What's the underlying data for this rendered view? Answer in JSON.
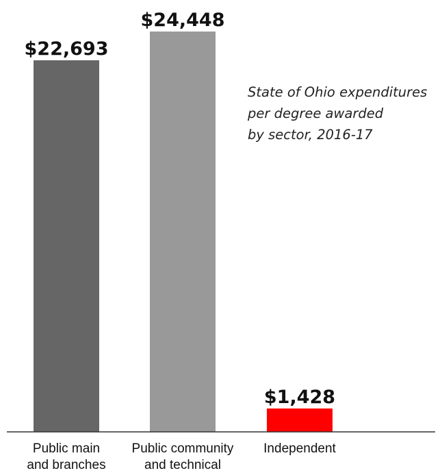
{
  "chart_data": {
    "type": "bar",
    "title": "State of Ohio expenditures per degree awarded by sector, 2016-17",
    "title_lines": [
      "State of Ohio expenditures",
      "per degree awarded",
      "by sector, 2016-17"
    ],
    "categories": [
      [
        "Public main",
        "and branches"
      ],
      [
        "Public community",
        "and technical"
      ],
      [
        "Independent"
      ]
    ],
    "values": [
      22693,
      24448,
      1428
    ],
    "value_labels": [
      "$22,693",
      "$24,448",
      "$1,428"
    ],
    "colors": [
      "#666666",
      "#999999",
      "#ff0000"
    ],
    "xlabel": "",
    "ylabel": "",
    "ylim": [
      0,
      24448
    ],
    "grid": false,
    "legend": "none"
  }
}
